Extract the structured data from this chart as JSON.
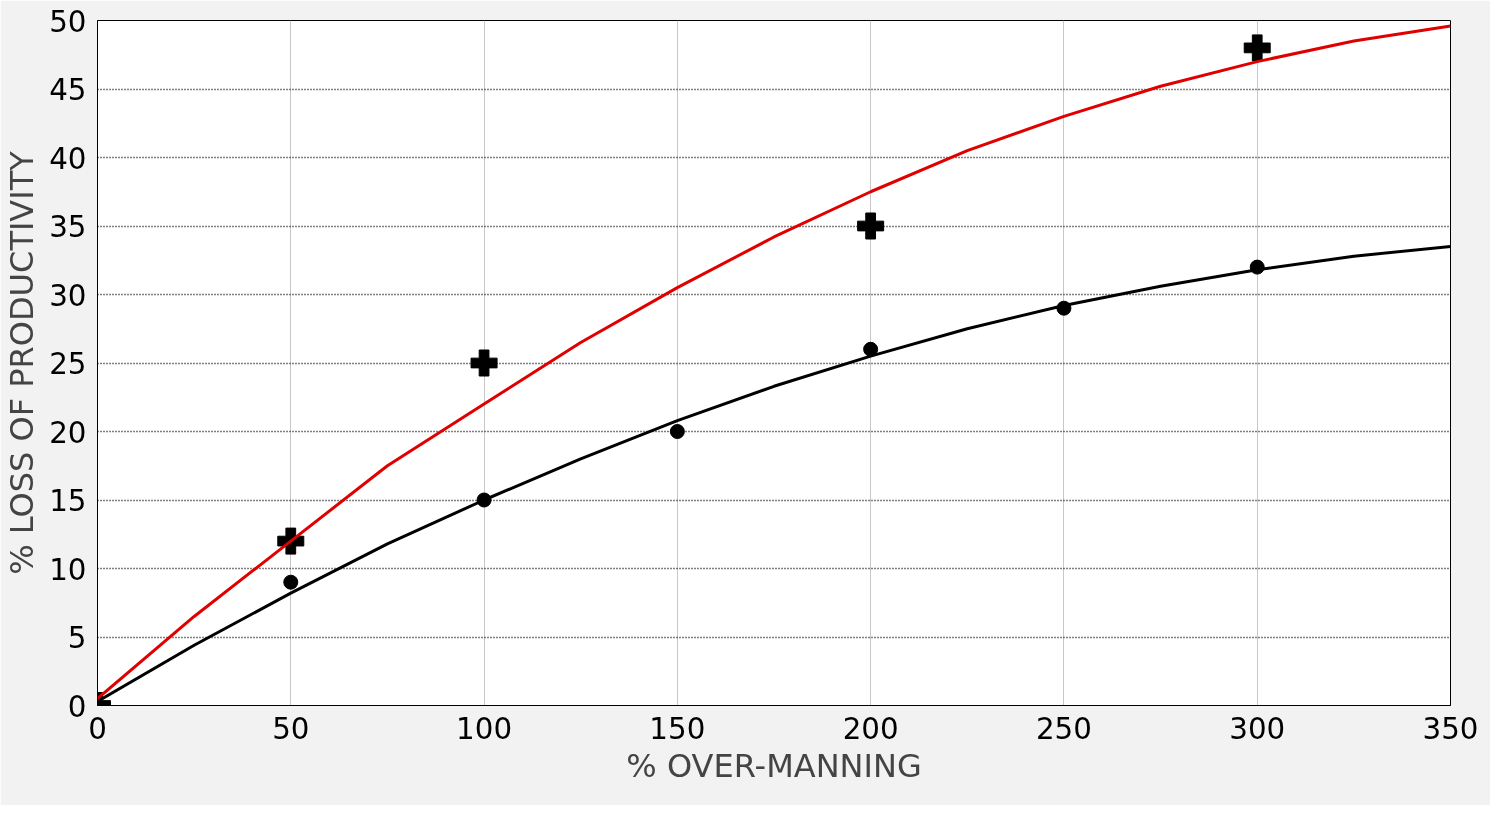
{
  "chart_data": {
    "type": "scatter",
    "xlabel": "% OVER-MANNING",
    "ylabel": "% LOSS OF PRODUCTIVITY",
    "xlim": [
      0,
      350
    ],
    "xticks": [
      0,
      50,
      100,
      150,
      200,
      250,
      300,
      350
    ],
    "ylim": [
      0,
      50
    ],
    "yticks": [
      0,
      5,
      10,
      15,
      20,
      25,
      30,
      35,
      40,
      45,
      50
    ],
    "grid": true,
    "series": [
      {
        "type": "line",
        "color": "#e00000",
        "marker": "none",
        "x": [
          0,
          25,
          50,
          75,
          100,
          125,
          150,
          175,
          200,
          225,
          250,
          275,
          300,
          325,
          350
        ],
        "values": [
          0.5,
          6.5,
          12,
          17.5,
          22,
          26.5,
          30.5,
          34.2,
          37.5,
          40.5,
          43,
          45.2,
          47,
          48.5,
          49.6
        ]
      },
      {
        "type": "line",
        "color": "#000000",
        "marker": "none",
        "x": [
          0,
          25,
          50,
          75,
          100,
          125,
          150,
          175,
          200,
          225,
          250,
          275,
          300,
          325,
          350
        ],
        "values": [
          0.3,
          4.4,
          8.2,
          11.8,
          15,
          18,
          20.8,
          23.3,
          25.5,
          27.5,
          29.2,
          30.6,
          31.8,
          32.8,
          33.5
        ]
      },
      {
        "color": "#000000",
        "marker": "cross",
        "x": [
          0,
          50,
          100,
          200,
          300
        ],
        "values": [
          0,
          12,
          25,
          35,
          48
        ]
      },
      {
        "color": "#000000",
        "marker": "circle",
        "x": [
          50,
          100,
          150,
          200,
          250,
          300
        ],
        "values": [
          9,
          15,
          20,
          26,
          29,
          32
        ]
      }
    ]
  }
}
